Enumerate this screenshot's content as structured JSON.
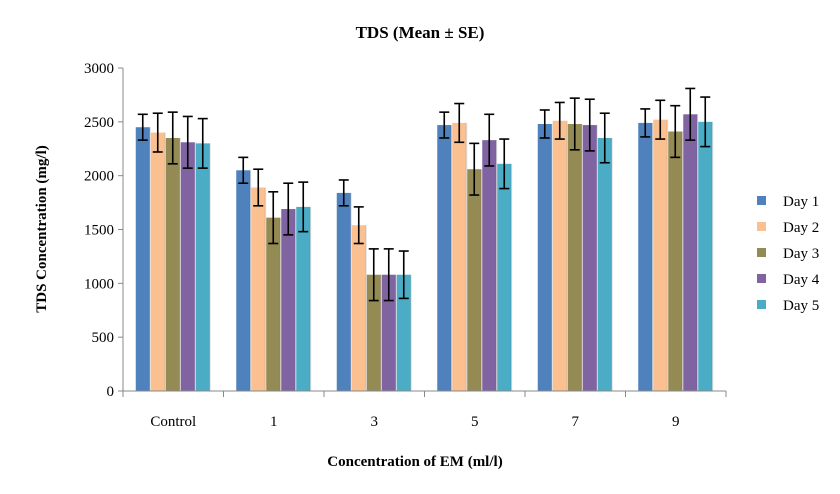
{
  "chart_data": {
    "type": "bar",
    "title": "TDS (Mean ± SE)",
    "xlabel": "Concentration of EM (ml/l)",
    "ylabel": "TDS Concentration (mg/l)",
    "ylim": [
      0,
      3000
    ],
    "yticks": [
      0,
      500,
      1000,
      1500,
      2000,
      2500,
      3000
    ],
    "categories": [
      "Control",
      "1",
      "3",
      "5",
      "7",
      "9"
    ],
    "legend_position": "right",
    "series": [
      {
        "name": "Day 1",
        "color": "#4F81BD",
        "values": [
          2450,
          2050,
          1840,
          2470,
          2480,
          2490
        ],
        "errors": [
          120,
          120,
          120,
          120,
          130,
          130
        ]
      },
      {
        "name": "Day 2",
        "color": "#FAC090",
        "values": [
          2400,
          1890,
          1540,
          2490,
          2510,
          2520
        ],
        "errors": [
          180,
          170,
          170,
          180,
          170,
          180
        ]
      },
      {
        "name": "Day 3",
        "color": "#948A54",
        "values": [
          2350,
          1610,
          1080,
          2060,
          2480,
          2410
        ],
        "errors": [
          240,
          240,
          240,
          240,
          240,
          240
        ]
      },
      {
        "name": "Day 4",
        "color": "#8064A2",
        "values": [
          2310,
          1690,
          1080,
          2330,
          2470,
          2570
        ],
        "errors": [
          240,
          240,
          240,
          240,
          240,
          240
        ]
      },
      {
        "name": "Day 5",
        "color": "#4BACC6",
        "values": [
          2300,
          1710,
          1080,
          2110,
          2350,
          2500
        ],
        "errors": [
          230,
          230,
          220,
          230,
          230,
          230
        ]
      }
    ]
  }
}
